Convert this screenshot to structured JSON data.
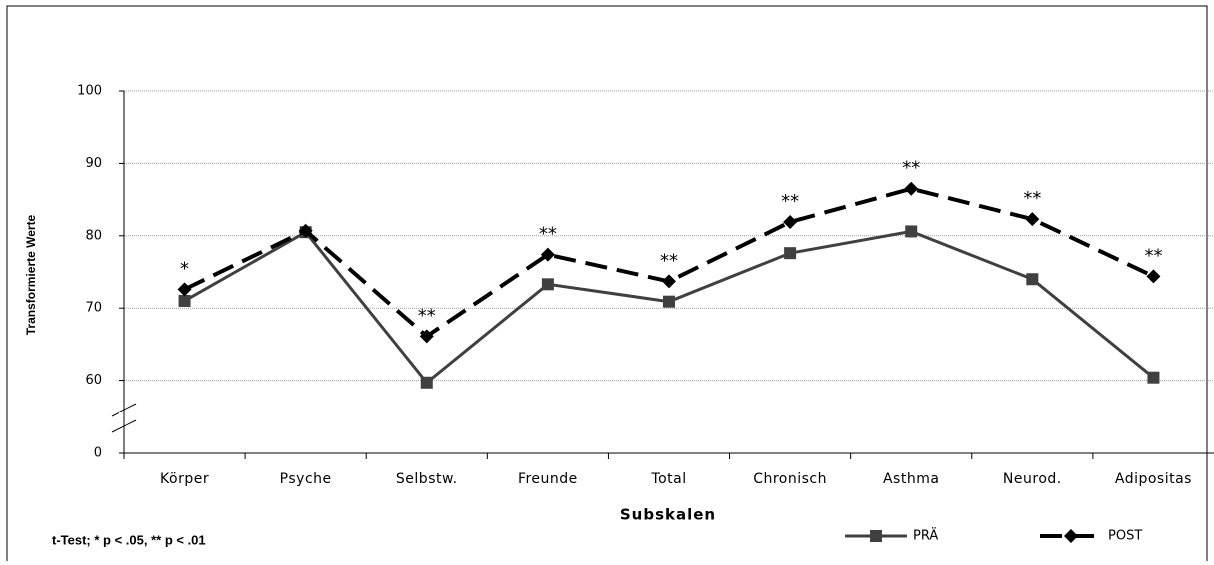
{
  "chart_data": {
    "type": "line",
    "x_label": "Subskalen",
    "y_label": "Transformierte Werte",
    "footnote": "t-Test; * p < .05, ** p < .01",
    "categories": [
      "Körper",
      "Psyche",
      "Selbstw.",
      "Freunde",
      "Total",
      "Chronisch",
      "Asthma",
      "Neurod.",
      "Adipositas"
    ],
    "series": [
      {
        "name": "PRÄ",
        "color": "#404040",
        "marker": "square",
        "dashed": false,
        "values": [
          71.0,
          80.5,
          58.2,
          73.3,
          70.9,
          77.6,
          80.6,
          74.0,
          60.4
        ]
      },
      {
        "name": "POST",
        "color": "#000000",
        "marker": "diamond",
        "dashed": true,
        "values": [
          72.6,
          80.7,
          66.1,
          77.4,
          73.7,
          81.9,
          86.5,
          82.3,
          74.4
        ]
      }
    ],
    "annotations": [
      "*",
      null,
      "**",
      "**",
      "**",
      "**",
      "**",
      "**",
      "**"
    ],
    "ylim": [
      0,
      100
    ],
    "yticks": [
      0,
      60,
      70,
      80,
      90,
      100
    ],
    "grid": true,
    "legend": "bottom-right"
  }
}
